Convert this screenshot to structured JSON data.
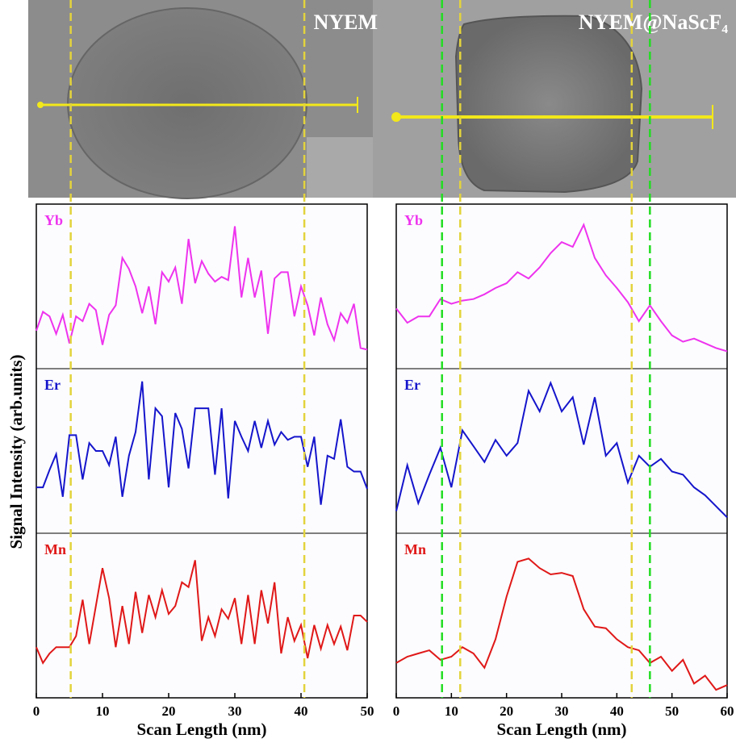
{
  "ylabel": "Signal Intensity (arb.units)",
  "chart_data": [
    {
      "type": "line",
      "title": "NYEM",
      "xlabel": "Scan Length (nm)",
      "x": [
        0,
        1,
        2,
        3,
        4,
        5,
        6,
        7,
        8,
        9,
        10,
        11,
        12,
        13,
        14,
        15,
        16,
        17,
        18,
        19,
        20,
        21,
        22,
        23,
        24,
        25,
        26,
        27,
        28,
        29,
        30,
        31,
        32,
        33,
        34,
        35,
        36,
        37,
        38,
        39,
        40,
        41,
        42,
        43,
        44,
        45,
        46,
        47,
        48,
        49,
        50
      ],
      "xlim": [
        0,
        50
      ],
      "xticks": [
        0,
        10,
        20,
        30,
        40,
        50
      ],
      "ylim": [
        0,
        100
      ],
      "guides": [
        {
          "value": 5.2,
          "color": "#e3d33c"
        },
        {
          "value": 40.5,
          "color": "#e3d33c"
        }
      ],
      "series": [
        {
          "name": "Yb",
          "color": "#ee33ee",
          "values": [
            22,
            34,
            31,
            20,
            32,
            14,
            31,
            28,
            39,
            35,
            13,
            32,
            38,
            68,
            61,
            50,
            33,
            50,
            26,
            59,
            53,
            62,
            39,
            80,
            52,
            66,
            58,
            53,
            56,
            54,
            88,
            43,
            68,
            43,
            60,
            20,
            55,
            59,
            59,
            31,
            50,
            38,
            19,
            43,
            26,
            16,
            33,
            27,
            39,
            11,
            10
          ]
        },
        {
          "name": "Er",
          "color": "#1515cc",
          "values": [
            27,
            27,
            38,
            48,
            21,
            60,
            60,
            32,
            55,
            50,
            50,
            41,
            59,
            21,
            47,
            62,
            94,
            32,
            77,
            72,
            27,
            74,
            64,
            39,
            77,
            77,
            77,
            35,
            77,
            20,
            69,
            59,
            50,
            69,
            52,
            69,
            54,
            62,
            57,
            59,
            59,
            40,
            59,
            16,
            47,
            45,
            70,
            40,
            37,
            37,
            26
          ]
        },
        {
          "name": "Mn",
          "color": "#e01818",
          "values": [
            30,
            20,
            26,
            30,
            30,
            30,
            37,
            60,
            32,
            56,
            80,
            61,
            30,
            56,
            32,
            65,
            39,
            63,
            49,
            66,
            51,
            56,
            71,
            68,
            85,
            34,
            49,
            37,
            54,
            48,
            61,
            32,
            63,
            32,
            66,
            45,
            71,
            26,
            49,
            34,
            44,
            23,
            44,
            29,
            44,
            32,
            43,
            28,
            50,
            50,
            46
          ]
        }
      ]
    },
    {
      "type": "line",
      "title": "NYEM@NaScF₄",
      "xlabel": "Scan Length (nm)",
      "x": [
        0,
        2,
        4,
        6,
        8,
        10,
        12,
        14,
        16,
        18,
        20,
        22,
        24,
        26,
        28,
        30,
        32,
        34,
        36,
        38,
        40,
        42,
        44,
        46,
        48,
        50,
        52,
        54,
        56,
        58,
        60
      ],
      "xlim": [
        0,
        60
      ],
      "xticks": [
        0,
        10,
        20,
        30,
        40,
        50,
        60
      ],
      "ylim": [
        0,
        100
      ],
      "guides": [
        {
          "value": 8.3,
          "color": "#22dd22"
        },
        {
          "value": 46,
          "color": "#22dd22"
        },
        {
          "value": 11.6,
          "color": "#e3d33c"
        },
        {
          "value": 42.7,
          "color": "#e3d33c"
        }
      ],
      "series": [
        {
          "name": "Yb",
          "color": "#ee33ee",
          "values": [
            36,
            27,
            31,
            31,
            42,
            39,
            41,
            42,
            45,
            49,
            52,
            59,
            55,
            62,
            71,
            78,
            75,
            89,
            68,
            57,
            49,
            40,
            28,
            38,
            28,
            19,
            15,
            17,
            14,
            11,
            9
          ]
        },
        {
          "name": "Er",
          "color": "#1515cc",
          "values": [
            12,
            41,
            17,
            35,
            52,
            27,
            63,
            53,
            43,
            57,
            47,
            55,
            88,
            75,
            93,
            75,
            84,
            54,
            84,
            47,
            55,
            30,
            47,
            40,
            45,
            37,
            35,
            27,
            22,
            15,
            8
          ]
        },
        {
          "name": "Mn",
          "color": "#e01818",
          "values": [
            20,
            24,
            26,
            28,
            22,
            24,
            30,
            26,
            17,
            35,
            62,
            84,
            86,
            80,
            76,
            77,
            75,
            54,
            43,
            42,
            35,
            30,
            28,
            20,
            24,
            15,
            22,
            7,
            12,
            3,
            6
          ]
        }
      ]
    }
  ]
}
